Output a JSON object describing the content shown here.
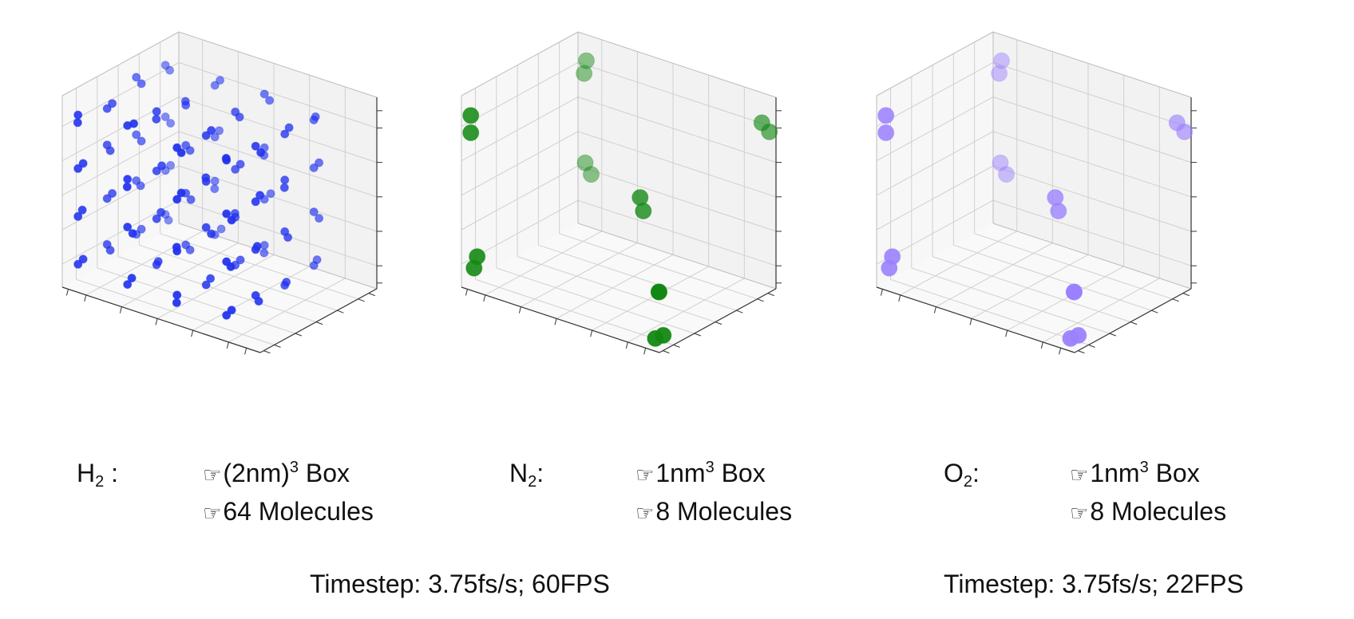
{
  "colors": {
    "h2": "#2233ee",
    "n2": "#128812",
    "o2": "#9b80ff"
  },
  "icons": {
    "bullet": "pointing-hand-icon"
  },
  "panels": [
    {
      "id": "h2",
      "label": "H",
      "sub": "2",
      "suffix": " :",
      "line1": {
        "pre": "(2nm)",
        "sup": "3",
        "post": " Box"
      },
      "line2": "64 Molecules"
    },
    {
      "id": "n2",
      "label": "N",
      "sub": "2",
      "suffix": ":",
      "line1": {
        "pre": "1nm",
        "sup": "3",
        "post": " Box"
      },
      "line2": "8 Molecules"
    },
    {
      "id": "o2",
      "label": "O",
      "sub": "2",
      "suffix": ":",
      "line1": {
        "pre": "1nm",
        "sup": "3",
        "post": " Box"
      },
      "line2": "8 Molecules"
    }
  ],
  "bullet_glyph": "☞",
  "timesteps": [
    "Timestep: 3.75fs/s; 60FPS",
    "Timestep: 3.75fs/s; 22FPS"
  ],
  "chart_data": [
    {
      "type": "scatter3d",
      "title": "",
      "grid": true,
      "ticks_labeled": false,
      "xlim": [
        0,
        1
      ],
      "ylim": [
        0,
        1
      ],
      "zlim": [
        0,
        1
      ],
      "color": "#2233ee",
      "marker_size": 5,
      "molecules": [
        [
          [
            0.05,
            0.05,
            0.9
          ],
          [
            0.06,
            0.03,
            0.87
          ]
        ],
        [
          [
            0.3,
            0.05,
            0.93
          ],
          [
            0.32,
            0.07,
            0.94
          ]
        ],
        [
          [
            0.55,
            0.05,
            0.9
          ],
          [
            0.56,
            0.07,
            0.87
          ]
        ],
        [
          [
            0.8,
            0.05,
            0.92
          ],
          [
            0.81,
            0.03,
            0.94
          ]
        ],
        [
          [
            0.05,
            0.3,
            0.85
          ],
          [
            0.07,
            0.31,
            0.88
          ]
        ],
        [
          [
            0.3,
            0.3,
            0.92
          ],
          [
            0.31,
            0.28,
            0.89
          ]
        ],
        [
          [
            0.55,
            0.3,
            0.88
          ],
          [
            0.57,
            0.31,
            0.91
          ]
        ],
        [
          [
            0.8,
            0.3,
            0.91
          ],
          [
            0.82,
            0.31,
            0.88
          ]
        ],
        [
          [
            0.05,
            0.55,
            0.93
          ],
          [
            0.07,
            0.56,
            0.9
          ]
        ],
        [
          [
            0.3,
            0.55,
            0.87
          ],
          [
            0.31,
            0.53,
            0.9
          ]
        ],
        [
          [
            0.55,
            0.55,
            0.92
          ],
          [
            0.56,
            0.57,
            0.89
          ]
        ],
        [
          [
            0.8,
            0.55,
            0.89
          ],
          [
            0.81,
            0.57,
            0.92
          ]
        ],
        [
          [
            0.05,
            0.8,
            0.91
          ],
          [
            0.06,
            0.82,
            0.88
          ]
        ],
        [
          [
            0.3,
            0.8,
            0.89
          ],
          [
            0.32,
            0.81,
            0.92
          ]
        ],
        [
          [
            0.55,
            0.8,
            0.93
          ],
          [
            0.57,
            0.81,
            0.9
          ]
        ],
        [
          [
            0.8,
            0.8,
            0.88
          ],
          [
            0.82,
            0.78,
            0.91
          ]
        ],
        [
          [
            0.05,
            0.05,
            0.62
          ],
          [
            0.07,
            0.06,
            0.65
          ]
        ],
        [
          [
            0.3,
            0.05,
            0.65
          ],
          [
            0.31,
            0.03,
            0.62
          ]
        ],
        [
          [
            0.55,
            0.05,
            0.63
          ],
          [
            0.56,
            0.07,
            0.66
          ]
        ],
        [
          [
            0.8,
            0.05,
            0.64
          ],
          [
            0.82,
            0.06,
            0.61
          ]
        ],
        [
          [
            0.05,
            0.3,
            0.66
          ],
          [
            0.06,
            0.31,
            0.63
          ]
        ],
        [
          [
            0.3,
            0.3,
            0.61
          ],
          [
            0.32,
            0.31,
            0.64
          ]
        ],
        [
          [
            0.55,
            0.3,
            0.64
          ],
          [
            0.56,
            0.28,
            0.67
          ]
        ],
        [
          [
            0.8,
            0.3,
            0.62
          ],
          [
            0.81,
            0.32,
            0.65
          ]
        ],
        [
          [
            0.05,
            0.55,
            0.63
          ],
          [
            0.07,
            0.56,
            0.6
          ]
        ],
        [
          [
            0.3,
            0.55,
            0.66
          ],
          [
            0.31,
            0.57,
            0.63
          ]
        ],
        [
          [
            0.55,
            0.55,
            0.62
          ],
          [
            0.57,
            0.56,
            0.65
          ]
        ],
        [
          [
            0.8,
            0.55,
            0.65
          ],
          [
            0.81,
            0.53,
            0.62
          ]
        ],
        [
          [
            0.05,
            0.8,
            0.64
          ],
          [
            0.07,
            0.81,
            0.61
          ]
        ],
        [
          [
            0.3,
            0.8,
            0.62
          ],
          [
            0.31,
            0.82,
            0.65
          ]
        ],
        [
          [
            0.55,
            0.8,
            0.65
          ],
          [
            0.56,
            0.78,
            0.62
          ]
        ],
        [
          [
            0.8,
            0.8,
            0.63
          ],
          [
            0.82,
            0.81,
            0.66
          ]
        ],
        [
          [
            0.05,
            0.05,
            0.37
          ],
          [
            0.06,
            0.07,
            0.4
          ]
        ],
        [
          [
            0.3,
            0.05,
            0.4
          ],
          [
            0.32,
            0.06,
            0.37
          ]
        ],
        [
          [
            0.55,
            0.05,
            0.36
          ],
          [
            0.56,
            0.03,
            0.39
          ]
        ],
        [
          [
            0.8,
            0.05,
            0.39
          ],
          [
            0.81,
            0.07,
            0.36
          ]
        ],
        [
          [
            0.05,
            0.3,
            0.38
          ],
          [
            0.07,
            0.31,
            0.41
          ]
        ],
        [
          [
            0.3,
            0.3,
            0.36
          ],
          [
            0.31,
            0.32,
            0.39
          ]
        ],
        [
          [
            0.55,
            0.3,
            0.4
          ],
          [
            0.57,
            0.31,
            0.37
          ]
        ],
        [
          [
            0.8,
            0.3,
            0.37
          ],
          [
            0.82,
            0.28,
            0.4
          ]
        ],
        [
          [
            0.05,
            0.55,
            0.39
          ],
          [
            0.06,
            0.57,
            0.36
          ]
        ],
        [
          [
            0.3,
            0.55,
            0.41
          ],
          [
            0.32,
            0.56,
            0.38
          ]
        ],
        [
          [
            0.55,
            0.55,
            0.37
          ],
          [
            0.56,
            0.53,
            0.4
          ]
        ],
        [
          [
            0.8,
            0.55,
            0.38
          ],
          [
            0.81,
            0.56,
            0.35
          ]
        ],
        [
          [
            0.05,
            0.8,
            0.36
          ],
          [
            0.07,
            0.81,
            0.39
          ]
        ],
        [
          [
            0.3,
            0.8,
            0.39
          ],
          [
            0.31,
            0.78,
            0.36
          ]
        ],
        [
          [
            0.55,
            0.8,
            0.38
          ],
          [
            0.57,
            0.82,
            0.41
          ]
        ],
        [
          [
            0.8,
            0.8,
            0.4
          ],
          [
            0.82,
            0.81,
            0.37
          ]
        ],
        [
          [
            0.05,
            0.05,
            0.12
          ],
          [
            0.07,
            0.06,
            0.15
          ]
        ],
        [
          [
            0.3,
            0.05,
            0.1
          ],
          [
            0.31,
            0.07,
            0.13
          ]
        ],
        [
          [
            0.55,
            0.05,
            0.13
          ],
          [
            0.56,
            0.03,
            0.1
          ]
        ],
        [
          [
            0.8,
            0.05,
            0.11
          ],
          [
            0.82,
            0.06,
            0.14
          ]
        ],
        [
          [
            0.05,
            0.3,
            0.14
          ],
          [
            0.06,
            0.31,
            0.11
          ]
        ],
        [
          [
            0.3,
            0.3,
            0.12
          ],
          [
            0.32,
            0.28,
            0.15
          ]
        ],
        [
          [
            0.55,
            0.3,
            0.1
          ],
          [
            0.56,
            0.32,
            0.13
          ]
        ],
        [
          [
            0.8,
            0.3,
            0.13
          ],
          [
            0.81,
            0.31,
            0.1
          ]
        ],
        [
          [
            0.05,
            0.55,
            0.11
          ],
          [
            0.07,
            0.56,
            0.14
          ]
        ],
        [
          [
            0.3,
            0.55,
            0.14
          ],
          [
            0.31,
            0.57,
            0.11
          ]
        ],
        [
          [
            0.55,
            0.55,
            0.12
          ],
          [
            0.57,
            0.56,
            0.15
          ]
        ],
        [
          [
            0.8,
            0.55,
            0.1
          ],
          [
            0.82,
            0.53,
            0.13
          ]
        ],
        [
          [
            0.05,
            0.8,
            0.13
          ],
          [
            0.06,
            0.81,
            0.1
          ]
        ],
        [
          [
            0.3,
            0.8,
            0.11
          ],
          [
            0.32,
            0.82,
            0.14
          ]
        ],
        [
          [
            0.55,
            0.8,
            0.14
          ],
          [
            0.56,
            0.78,
            0.11
          ]
        ],
        [
          [
            0.8,
            0.8,
            0.12
          ],
          [
            0.81,
            0.81,
            0.15
          ]
        ]
      ]
    },
    {
      "type": "scatter3d",
      "title": "",
      "grid": true,
      "ticks_labeled": false,
      "xlim": [
        0,
        1
      ],
      "ylim": [
        0,
        1
      ],
      "zlim": [
        0,
        1
      ],
      "color": "#128812",
      "marker_size": 10,
      "molecules": [
        [
          [
            0.04,
            0.04,
            0.1
          ],
          [
            0.05,
            0.05,
            0.16
          ]
        ],
        [
          [
            0.95,
            0.05,
            0.04
          ],
          [
            0.99,
            0.05,
            0.07
          ]
        ],
        [
          [
            0.06,
            0.95,
            0.82
          ],
          [
            0.06,
            0.97,
            0.88
          ]
        ],
        [
          [
            0.97,
            0.93,
            0.88
          ],
          [
            0.99,
            0.96,
            0.83
          ]
        ],
        [
          [
            0.0,
            0.08,
            0.87
          ],
          [
            0.0,
            0.08,
            0.78
          ]
        ],
        [
          [
            0.98,
            0.03,
            0.3
          ],
          [
            0.98,
            0.03,
            0.3
          ]
        ],
        [
          [
            0.06,
            0.96,
            0.35
          ],
          [
            0.09,
            0.96,
            0.3
          ]
        ],
        [
          [
            0.62,
            0.48,
            0.52
          ],
          [
            0.63,
            0.49,
            0.45
          ]
        ]
      ]
    },
    {
      "type": "scatter3d",
      "title": "",
      "grid": true,
      "ticks_labeled": false,
      "xlim": [
        0,
        1
      ],
      "ylim": [
        0,
        1
      ],
      "zlim": [
        0,
        1
      ],
      "color": "#9b80ff",
      "marker_size": 10,
      "molecules": [
        [
          [
            0.04,
            0.04,
            0.1
          ],
          [
            0.05,
            0.05,
            0.16
          ]
        ],
        [
          [
            0.95,
            0.05,
            0.04
          ],
          [
            0.99,
            0.05,
            0.07
          ]
        ],
        [
          [
            0.06,
            0.95,
            0.82
          ],
          [
            0.06,
            0.97,
            0.88
          ]
        ],
        [
          [
            0.97,
            0.93,
            0.88
          ],
          [
            0.99,
            0.96,
            0.83
          ]
        ],
        [
          [
            0.0,
            0.08,
            0.87
          ],
          [
            0.0,
            0.08,
            0.78
          ]
        ],
        [
          [
            0.98,
            0.03,
            0.3
          ],
          [
            0.98,
            0.03,
            0.3
          ]
        ],
        [
          [
            0.06,
            0.96,
            0.35
          ],
          [
            0.09,
            0.96,
            0.3
          ]
        ],
        [
          [
            0.62,
            0.48,
            0.52
          ],
          [
            0.63,
            0.49,
            0.45
          ]
        ]
      ]
    }
  ]
}
